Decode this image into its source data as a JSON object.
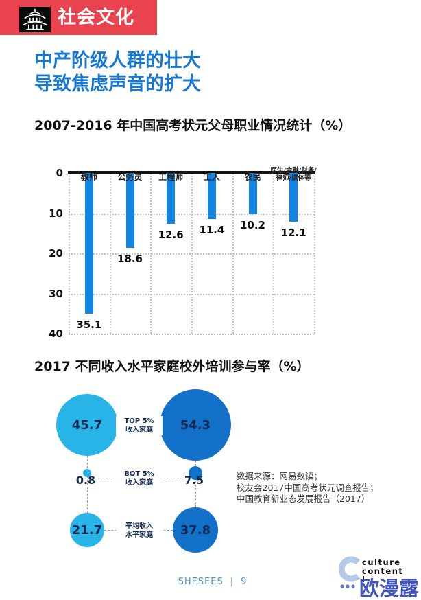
{
  "header": {
    "badge_label": "社会文化",
    "badge_color": "#e8434f",
    "icon": "pagoda-icon"
  },
  "title": {
    "line1": "中产阶级人群的壮大",
    "line2": "导致焦虑声音的扩大",
    "color": "#1778d2"
  },
  "chart_data": [
    {
      "type": "bar",
      "title": "2007-2016 年中国高考状元父母职业情况统计（%）",
      "orientation": "inverted-vertical-bars-hanging-from-zero",
      "categories": [
        "教师",
        "公务员",
        "工程师",
        "工人",
        "农民",
        "医生/金融/财务/\n律师/媒体等"
      ],
      "values": [
        35.1,
        18.6,
        12.6,
        11.4,
        10.2,
        12.1
      ],
      "xlabel": "",
      "ylabel": "",
      "ylim": [
        0,
        40
      ],
      "yticks": [
        0,
        10,
        20,
        30,
        40
      ],
      "grid": "dotted",
      "bar_color": "#1285e2",
      "axis_color": "#111111"
    },
    {
      "type": "scatter",
      "subtype": "bubble-grid",
      "title": "2017 不同收入水平家庭校外培训参与率（%）",
      "rows": [
        {
          "label": "TOP 5%\n收入家庭",
          "left_value": 45.7,
          "right_value": 54.3
        },
        {
          "label": "BOT 5%\n收入家庭",
          "left_value": 0.8,
          "right_value": 7.5
        },
        {
          "label": "平均收入\n水平家庭",
          "left_value": 21.7,
          "right_value": 37.8
        }
      ],
      "left_color": "#29b4e8",
      "right_color": "#1371c9",
      "value_text_color": "#0f2a52",
      "note": "bubble area proportional to value"
    }
  ],
  "source": {
    "lines": [
      "数据来源：网易数读；",
      "校友会2017中国高考状元调查报告；",
      "中国教育新业态发展报告（2017）"
    ]
  },
  "footer": {
    "brand": "SHESEES",
    "separator": "|",
    "page": "9"
  },
  "logo": {
    "mark": "C",
    "lines": [
      "culture",
      "content",
      "l"
    ]
  },
  "watermark": "欧漫露"
}
